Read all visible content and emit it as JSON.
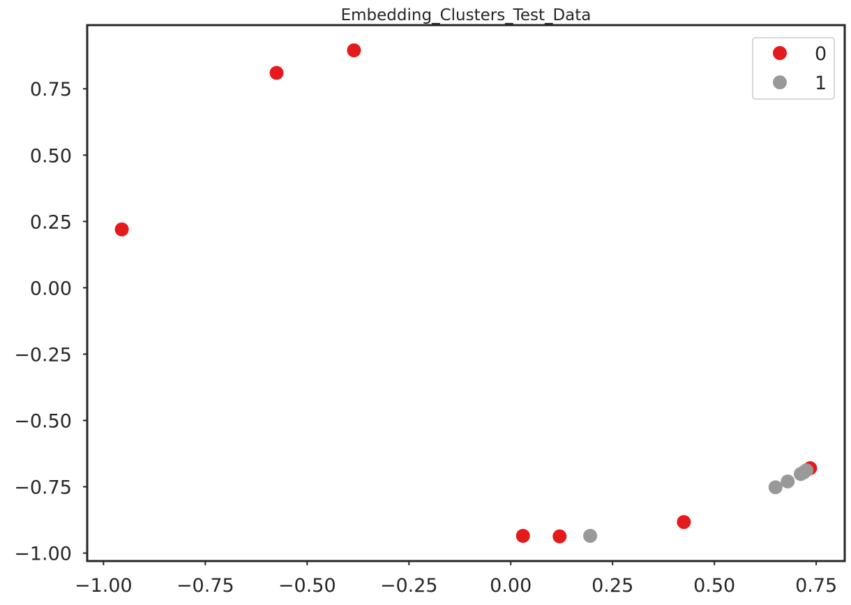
{
  "chart_data": {
    "type": "scatter",
    "title": "Embedding_Clusters_Test_Data",
    "xlabel": "",
    "ylabel": "",
    "xlim": [
      -1.04,
      0.82
    ],
    "ylim": [
      -1.03,
      0.99
    ],
    "x_ticks": [
      {
        "value": -1.0,
        "label": "−1.00"
      },
      {
        "value": -0.75,
        "label": "−0.75"
      },
      {
        "value": -0.5,
        "label": "−0.50"
      },
      {
        "value": -0.25,
        "label": "−0.25"
      },
      {
        "value": 0.0,
        "label": "0.00"
      },
      {
        "value": 0.25,
        "label": "0.25"
      },
      {
        "value": 0.5,
        "label": "0.50"
      },
      {
        "value": 0.75,
        "label": "0.75"
      }
    ],
    "y_ticks": [
      {
        "value": 0.75,
        "label": "0.75"
      },
      {
        "value": 0.5,
        "label": "0.50"
      },
      {
        "value": 0.25,
        "label": "0.25"
      },
      {
        "value": 0.0,
        "label": "0.00"
      },
      {
        "value": -0.25,
        "label": "−0.25"
      },
      {
        "value": -0.5,
        "label": "−0.50"
      },
      {
        "value": -0.75,
        "label": "−0.75"
      },
      {
        "value": -1.0,
        "label": "−1.00"
      }
    ],
    "grid": false,
    "legend_position": "top-right",
    "series": [
      {
        "name": "0",
        "color": "#e41a1c",
        "points": [
          {
            "x": -0.955,
            "y": 0.22
          },
          {
            "x": -0.575,
            "y": 0.81
          },
          {
            "x": -0.385,
            "y": 0.895
          },
          {
            "x": 0.03,
            "y": -0.935
          },
          {
            "x": 0.12,
            "y": -0.937
          },
          {
            "x": 0.425,
            "y": -0.883
          },
          {
            "x": 0.735,
            "y": -0.68
          }
        ]
      },
      {
        "name": "1",
        "color": "#999999",
        "points": [
          {
            "x": 0.195,
            "y": -0.935
          },
          {
            "x": 0.65,
            "y": -0.752
          },
          {
            "x": 0.68,
            "y": -0.73
          },
          {
            "x": 0.712,
            "y": -0.702
          },
          {
            "x": 0.72,
            "y": -0.695
          },
          {
            "x": 0.726,
            "y": -0.688
          }
        ]
      }
    ]
  }
}
